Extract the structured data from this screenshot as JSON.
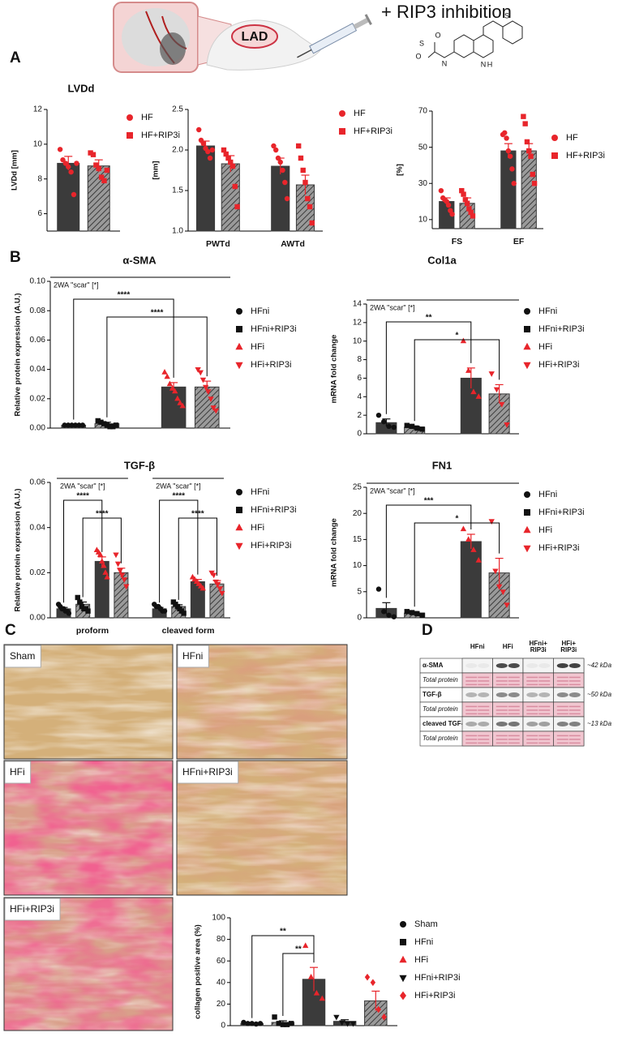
{
  "illustration": {
    "label": "LAD",
    "caption": "+ RIP3 inhibition",
    "atoms": [
      "S",
      "N",
      "H",
      "N",
      "S",
      "O",
      "O"
    ]
  },
  "panels": [
    "A",
    "B",
    "C",
    "D"
  ],
  "histology": [
    "Sham",
    "HFni",
    "HFi",
    "HFni+RIP3i",
    "HFi+RIP3i"
  ],
  "blot": {
    "columns": [
      [
        "HFni"
      ],
      [
        "HFi"
      ],
      [
        "HFni+",
        "RIP3i"
      ],
      [
        "HFi+",
        "RIP3i"
      ]
    ],
    "rows": [
      "α-SMA",
      "Total protein",
      "TGF-β",
      "Total protein",
      "cleaved TGF-β",
      "Total protein"
    ],
    "sizes": [
      "~42 kDa",
      "~50 kDa",
      "~13 kDa"
    ]
  },
  "chart_data": [
    {
      "type": "bar",
      "title": "LVDd",
      "ylabel": "LVDd [mm]",
      "categories": [
        null
      ],
      "ylim": [
        5,
        12
      ],
      "yticks": [
        6,
        8,
        10,
        12
      ],
      "series": [
        {
          "name": "HF",
          "color": "#3b3b3b",
          "hatch": false,
          "marker": "circle",
          "marker_color": "#e8252b",
          "values": [
            8.9
          ],
          "errors": [
            0.4
          ],
          "points": [
            [
              9.7,
              9.1,
              8.9,
              8.7,
              8.4,
              7.1,
              8.9
            ]
          ]
        },
        {
          "name": "HF+RIP3i",
          "color": "#3b3b3b",
          "hatch": true,
          "marker": "square",
          "marker_color": "#e8252b",
          "values": [
            8.75
          ],
          "errors": [
            0.35
          ],
          "points": [
            [
              9.5,
              9.4,
              8.8,
              8.6,
              8.1,
              7.9,
              8.5
            ]
          ]
        }
      ]
    },
    {
      "type": "bar",
      "ylabel": "[mm]",
      "categories": [
        "PWTd",
        "AWTd"
      ],
      "ylim": [
        1,
        2.5
      ],
      "yticks": [
        {
          "value": 1,
          "label": "1.0"
        },
        1.5,
        {
          "value": 2,
          "label": "2.0"
        },
        2.5
      ],
      "series": [
        {
          "name": "HF",
          "color": "#3b3b3b",
          "hatch": false,
          "marker": "circle",
          "marker_color": "#e8252b",
          "values": [
            2.05,
            1.8
          ],
          "errors": [
            0.06,
            0.1
          ],
          "points": [
            [
              2.25,
              2.12,
              2.08,
              2.02,
              1.98,
              1.9,
              2.0
            ],
            [
              2.05,
              2.0,
              1.9,
              1.85,
              1.75,
              1.6,
              1.4
            ]
          ]
        },
        {
          "name": "HF+RIP3i",
          "color": "#3b3b3b",
          "hatch": true,
          "marker": "square",
          "marker_color": "#e8252b",
          "values": [
            1.83,
            1.57
          ],
          "errors": [
            0.1,
            0.12
          ],
          "points": [
            [
              2.0,
              1.95,
              1.9,
              1.85,
              1.8,
              1.55,
              1.3
            ],
            [
              2.05,
              1.9,
              1.75,
              1.6,
              1.4,
              1.3,
              1.1
            ]
          ]
        }
      ]
    },
    {
      "type": "bar",
      "ylabel": "[%]",
      "categories": [
        "FS",
        "EF"
      ],
      "ylim": [
        5,
        70
      ],
      "yticks": [
        10,
        30,
        50,
        70
      ],
      "series": [
        {
          "name": "HF",
          "color": "#3b3b3b",
          "hatch": false,
          "marker": "circle",
          "marker_color": "#e8252b",
          "values": [
            20,
            48
          ],
          "errors": [
            2,
            4
          ],
          "points": [
            [
              26,
              22,
              21,
              20,
              18,
              15,
              13
            ],
            [
              57,
              58,
              55,
              48,
              45,
              38,
              30
            ]
          ]
        },
        {
          "name": "HF+RIP3i",
          "color": "#3b3b3b",
          "hatch": true,
          "marker": "square",
          "marker_color": "#e8252b",
          "values": [
            19,
            48
          ],
          "errors": [
            3,
            4
          ],
          "points": [
            [
              26,
              24,
              21,
              19,
              16,
              14,
              12
            ],
            [
              67,
              63,
              53,
              48,
              45,
              35,
              30
            ]
          ]
        }
      ]
    },
    {
      "type": "bar",
      "title": "α-SMA",
      "ylabel": "Relative protein expression (A.U.)",
      "categories": [
        null
      ],
      "ylim": [
        0,
        0.1
      ],
      "yticks": [
        {
          "value": 0,
          "label": "0.00"
        },
        {
          "value": 0.02,
          "label": "0.02"
        },
        {
          "value": 0.04,
          "label": "0.04"
        },
        {
          "value": 0.06,
          "label": "0.06"
        },
        {
          "value": 0.08,
          "label": "0.08"
        },
        {
          "value": 0.1,
          "label": "0.10"
        }
      ],
      "annotations": [
        "2WA \"scar\" [*]"
      ],
      "brackets": [
        {
          "label": "****",
          "from": 0,
          "to": 2
        },
        {
          "label": "****",
          "from": 1,
          "to": 3
        }
      ],
      "series": [
        {
          "name": "HFni",
          "color": "#3b3b3b",
          "hatch": false,
          "marker": "circle",
          "marker_color": "#111111",
          "values": [
            0.002
          ],
          "errors": [
            0.0005
          ],
          "points": [
            [
              0.002,
              0.002,
              0.002,
              0.002,
              0.002,
              0.002
            ]
          ]
        },
        {
          "name": "HFni+RIP3i",
          "color": "#3b3b3b",
          "hatch": true,
          "marker": "square",
          "marker_color": "#111111",
          "values": [
            0.003
          ],
          "errors": [
            0.001
          ],
          "points": [
            [
              0.005,
              0.004,
              0.003,
              0.002,
              0.001,
              0.001,
              0.002
            ]
          ]
        },
        {
          "name": "HFi",
          "color": "#3b3b3b",
          "hatch": false,
          "marker": "triangle",
          "marker_color": "#e8252b",
          "values": [
            0.028
          ],
          "errors": [
            0.003
          ],
          "points": [
            [
              0.038,
              0.035,
              0.03,
              0.027,
              0.025,
              0.02,
              0.017,
              0.015
            ]
          ]
        },
        {
          "name": "HFi+RIP3i",
          "color": "#3b3b3b",
          "hatch": true,
          "marker": "triangle-down",
          "marker_color": "#e8252b",
          "values": [
            0.028
          ],
          "errors": [
            0.004
          ],
          "points": [
            [
              0.04,
              0.038,
              0.033,
              0.028,
              0.025,
              0.02,
              0.014,
              0.012
            ]
          ]
        }
      ]
    },
    {
      "type": "bar",
      "title": "Col1a",
      "ylabel": "mRNA fold change",
      "categories": [
        null
      ],
      "ylim": [
        0,
        14
      ],
      "yticks": [
        0,
        2,
        4,
        6,
        8,
        10,
        12,
        14
      ],
      "annotations": [
        "2WA \"scar\" [*]"
      ],
      "brackets": [
        {
          "label": "**",
          "from": 0,
          "to": 2
        },
        {
          "label": "*",
          "from": 1,
          "to": 3
        }
      ],
      "series": [
        {
          "name": "HFni",
          "color": "#3b3b3b",
          "hatch": false,
          "marker": "circle",
          "marker_color": "#111111",
          "values": [
            1.2
          ],
          "errors": [
            0.4
          ],
          "points": [
            [
              2.0,
              1.3,
              0.8,
              0.7
            ]
          ]
        },
        {
          "name": "HFni+RIP3i",
          "color": "#3b3b3b",
          "hatch": true,
          "marker": "square",
          "marker_color": "#111111",
          "values": [
            0.7
          ],
          "errors": [
            0.15
          ],
          "points": [
            [
              0.9,
              0.8,
              0.6,
              0.5
            ]
          ]
        },
        {
          "name": "HFi",
          "color": "#3b3b3b",
          "hatch": false,
          "marker": "triangle",
          "marker_color": "#e8252b",
          "values": [
            6.0
          ],
          "errors": [
            1.1
          ],
          "points": [
            [
              10.0,
              6.8,
              4.5,
              4.0
            ]
          ]
        },
        {
          "name": "HFi+RIP3i",
          "color": "#3b3b3b",
          "hatch": true,
          "marker": "triangle-down",
          "marker_color": "#e8252b",
          "values": [
            4.3
          ],
          "errors": [
            1.0
          ],
          "points": [
            [
              6.5,
              4.8,
              3.2,
              1.0
            ]
          ]
        }
      ]
    },
    {
      "type": "bar",
      "title": "TGF-β",
      "ylabel": "Relative protein expression (A.U.)",
      "categories": [
        "proform",
        "cleaved form"
      ],
      "ylim": [
        0,
        0.06
      ],
      "yticks": [
        {
          "value": 0,
          "label": "0.00"
        },
        {
          "value": 0.02,
          "label": "0.02"
        },
        {
          "value": 0.04,
          "label": "0.04"
        },
        {
          "value": 0.06,
          "label": "0.06"
        }
      ],
      "annotations": [
        "2WA \"scar\" [*]",
        "2WA \"scar\" [*]"
      ],
      "brackets": [
        {
          "label": "****",
          "cat": 0,
          "from": 0,
          "to": 2
        },
        {
          "label": "****",
          "cat": 0,
          "from": 1,
          "to": 3
        },
        {
          "label": "****",
          "cat": 1,
          "from": 0,
          "to": 2
        },
        {
          "label": "****",
          "cat": 1,
          "from": 1,
          "to": 3
        }
      ],
      "series": [
        {
          "name": "HFni",
          "color": "#3b3b3b",
          "hatch": false,
          "marker": "circle",
          "marker_color": "#111111",
          "values": [
            0.004,
            0.004
          ],
          "errors": [
            0.0006,
            0.0006
          ],
          "points": [
            [
              0.006,
              0.005,
              0.004,
              0.004,
              0.003,
              0.003,
              0.002
            ],
            [
              0.006,
              0.005,
              0.005,
              0.004,
              0.003,
              0.003
            ]
          ]
        },
        {
          "name": "HFni+RIP3i",
          "color": "#3b3b3b",
          "hatch": true,
          "marker": "square",
          "marker_color": "#111111",
          "values": [
            0.006,
            0.005
          ],
          "errors": [
            0.001,
            0.0008
          ],
          "points": [
            [
              0.009,
              0.007,
              0.005,
              0.004,
              0.004,
              0.003
            ],
            [
              0.007,
              0.006,
              0.005,
              0.004,
              0.003,
              0.002
            ]
          ]
        },
        {
          "name": "HFi",
          "color": "#3b3b3b",
          "hatch": false,
          "marker": "triangle",
          "marker_color": "#e8252b",
          "values": [
            0.025,
            0.016
          ],
          "errors": [
            0.002,
            0.001
          ],
          "points": [
            [
              0.03,
              0.029,
              0.028,
              0.025,
              0.023,
              0.02,
              0.018
            ],
            [
              0.018,
              0.017,
              0.016,
              0.015,
              0.014,
              0.013
            ]
          ]
        },
        {
          "name": "HFi+RIP3i",
          "color": "#3b3b3b",
          "hatch": true,
          "marker": "triangle-down",
          "marker_color": "#e8252b",
          "values": [
            0.02,
            0.015
          ],
          "errors": [
            0.002,
            0.0015
          ],
          "points": [
            [
              0.028,
              0.024,
              0.021,
              0.019,
              0.017,
              0.014
            ],
            [
              0.02,
              0.019,
              0.016,
              0.015,
              0.013,
              0.011
            ]
          ]
        }
      ]
    },
    {
      "type": "bar",
      "title": "FN1",
      "ylabel": "mRNA fold change",
      "categories": [
        null
      ],
      "ylim": [
        0,
        25
      ],
      "yticks": [
        0,
        5,
        10,
        15,
        20,
        25
      ],
      "annotations": [
        "2WA \"scar\" [*]"
      ],
      "brackets": [
        {
          "label": "***",
          "from": 0,
          "to": 2
        },
        {
          "label": "*",
          "from": 1,
          "to": 3
        }
      ],
      "series": [
        {
          "name": "HFni",
          "color": "#3b3b3b",
          "hatch": false,
          "marker": "circle",
          "marker_color": "#111111",
          "values": [
            1.8
          ],
          "errors": [
            1.1
          ],
          "points": [
            [
              5.5,
              1.2,
              0.5,
              0.2
            ]
          ]
        },
        {
          "name": "HFni+RIP3i",
          "color": "#3b3b3b",
          "hatch": true,
          "marker": "square",
          "marker_color": "#111111",
          "values": [
            0.9
          ],
          "errors": [
            0.3
          ],
          "points": [
            [
              1.2,
              1.0,
              0.8,
              0.5
            ]
          ]
        },
        {
          "name": "HFi",
          "color": "#3b3b3b",
          "hatch": false,
          "marker": "triangle",
          "marker_color": "#e8252b",
          "values": [
            14.6
          ],
          "errors": [
            1.4
          ],
          "points": [
            [
              17,
              15,
              13,
              11
            ]
          ]
        },
        {
          "name": "HFi+RIP3i",
          "color": "#3b3b3b",
          "hatch": true,
          "marker": "triangle-down",
          "marker_color": "#e8252b",
          "values": [
            8.6
          ],
          "errors": [
            2.8
          ],
          "points": [
            [
              18.5,
              9,
              6,
              5,
              2.5
            ]
          ]
        }
      ]
    },
    {
      "type": "bar",
      "ylabel": "collagen positive area (%)",
      "categories": [
        null
      ],
      "ylim": [
        0,
        100
      ],
      "yticks": [
        0,
        20,
        40,
        60,
        80,
        100
      ],
      "brackets": [
        {
          "label": "**",
          "from": 0,
          "to": 2
        },
        {
          "label": "**",
          "from": 1,
          "to": 2
        }
      ],
      "series": [
        {
          "name": "Sham",
          "color": "#3b3b3b",
          "hatch": false,
          "marker": "circle",
          "marker_color": "#111111",
          "values": [
            2
          ],
          "errors": [
            0.5
          ],
          "points": [
            [
              3,
              2,
              2,
              1.5,
              2
            ]
          ]
        },
        {
          "name": "HFni",
          "color": "#3b3b3b",
          "hatch": true,
          "marker": "square",
          "marker_color": "#111111",
          "values": [
            3
          ],
          "errors": [
            1.5
          ],
          "points": [
            [
              8,
              2,
              1,
              1,
              2
            ]
          ]
        },
        {
          "name": "HFi",
          "color": "#3b3b3b",
          "hatch": false,
          "marker": "triangle",
          "marker_color": "#e8252b",
          "values": [
            43
          ],
          "errors": [
            11
          ],
          "points": [
            [
              74,
              45,
              30,
              25
            ]
          ]
        },
        {
          "name": "HFni+RIP3i",
          "color": "#3b3b3b",
          "hatch": false,
          "marker": "triangle-down",
          "marker_color": "#111111",
          "values": [
            4
          ],
          "errors": [
            1.5
          ],
          "points": [
            [
              8,
              3,
              2,
              2
            ]
          ]
        },
        {
          "name": "HFi+RIP3i",
          "color": "#3b3b3b",
          "hatch": true,
          "marker": "diamond",
          "marker_color": "#e8252b",
          "values": [
            23
          ],
          "errors": [
            9
          ],
          "points": [
            [
              45,
              40,
              15,
              8
            ]
          ]
        }
      ]
    }
  ]
}
